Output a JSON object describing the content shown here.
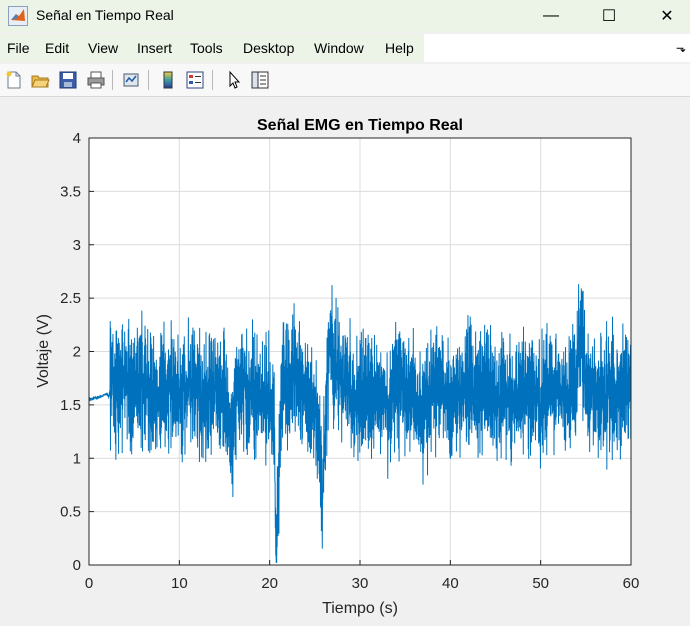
{
  "window": {
    "title": "Señal en Tiempo Real",
    "minimize_glyph": "—",
    "maximize_glyph": "☐",
    "close_glyph": "✕"
  },
  "menu": {
    "items": [
      "File",
      "Edit",
      "View",
      "Insert",
      "Tools",
      "Desktop",
      "Window",
      "Help"
    ],
    "dock_glyph": "⬎"
  },
  "toolbar": {
    "buttons": [
      "new-figure-icon",
      "open-file-icon",
      "save-icon",
      "print-icon",
      "link-plot-icon",
      "colorbar-icon",
      "legend-icon",
      "pointer-arrow-icon",
      "property-inspector-icon"
    ]
  },
  "chart_data": {
    "type": "line",
    "title": "Señal EMG en Tiempo Real",
    "xlabel": "Tiempo (s)",
    "ylabel": "Voltaje (V)",
    "xlim": [
      0,
      60
    ],
    "ylim": [
      0,
      4
    ],
    "xticks": [
      "0",
      "10",
      "20",
      "30",
      "40",
      "50",
      "60"
    ],
    "yticks": [
      "0",
      "0.5",
      "1",
      "1.5",
      "2",
      "2.5",
      "3",
      "3.5",
      "4"
    ],
    "grid": true,
    "line_color": "#0072bd",
    "series": [
      {
        "x": [
          0,
          1,
          2,
          2.2,
          2.5,
          3,
          4,
          5,
          6,
          7,
          8,
          9,
          10,
          11,
          12,
          13,
          14,
          15,
          15.8,
          16.2,
          17,
          18,
          19,
          19.5,
          20,
          20.5,
          20.7,
          20.9,
          21.2,
          21.5,
          22,
          23,
          24,
          25,
          25.5,
          25.8,
          26.2,
          26.6,
          27,
          28,
          29,
          30,
          31,
          32,
          33,
          34,
          35,
          36,
          37,
          38,
          39,
          40,
          41,
          42,
          43,
          44,
          45,
          46,
          47,
          48,
          49,
          50,
          51,
          52,
          53,
          54,
          54.5,
          55,
          56,
          57,
          58,
          59,
          60
        ],
        "values": [
          1.55,
          1.57,
          1.6,
          1.58,
          1.75,
          1.65,
          1.7,
          1.6,
          1.72,
          1.55,
          1.65,
          1.7,
          1.6,
          1.68,
          1.62,
          1.55,
          1.7,
          1.6,
          1.1,
          1.5,
          1.7,
          1.6,
          1.55,
          1.6,
          1.5,
          1.2,
          0.1,
          0.6,
          1.4,
          1.8,
          1.7,
          1.75,
          1.6,
          1.5,
          1.2,
          0.5,
          1.4,
          2.2,
          1.9,
          1.75,
          1.6,
          1.55,
          1.65,
          1.6,
          1.5,
          1.65,
          1.7,
          1.55,
          1.45,
          1.6,
          1.7,
          1.5,
          1.55,
          1.7,
          1.6,
          1.65,
          1.5,
          1.6,
          1.55,
          1.7,
          1.6,
          1.5,
          1.65,
          1.7,
          1.55,
          1.75,
          2.3,
          1.65,
          1.6,
          1.55,
          1.65,
          1.6,
          1.75
        ]
      }
    ]
  }
}
